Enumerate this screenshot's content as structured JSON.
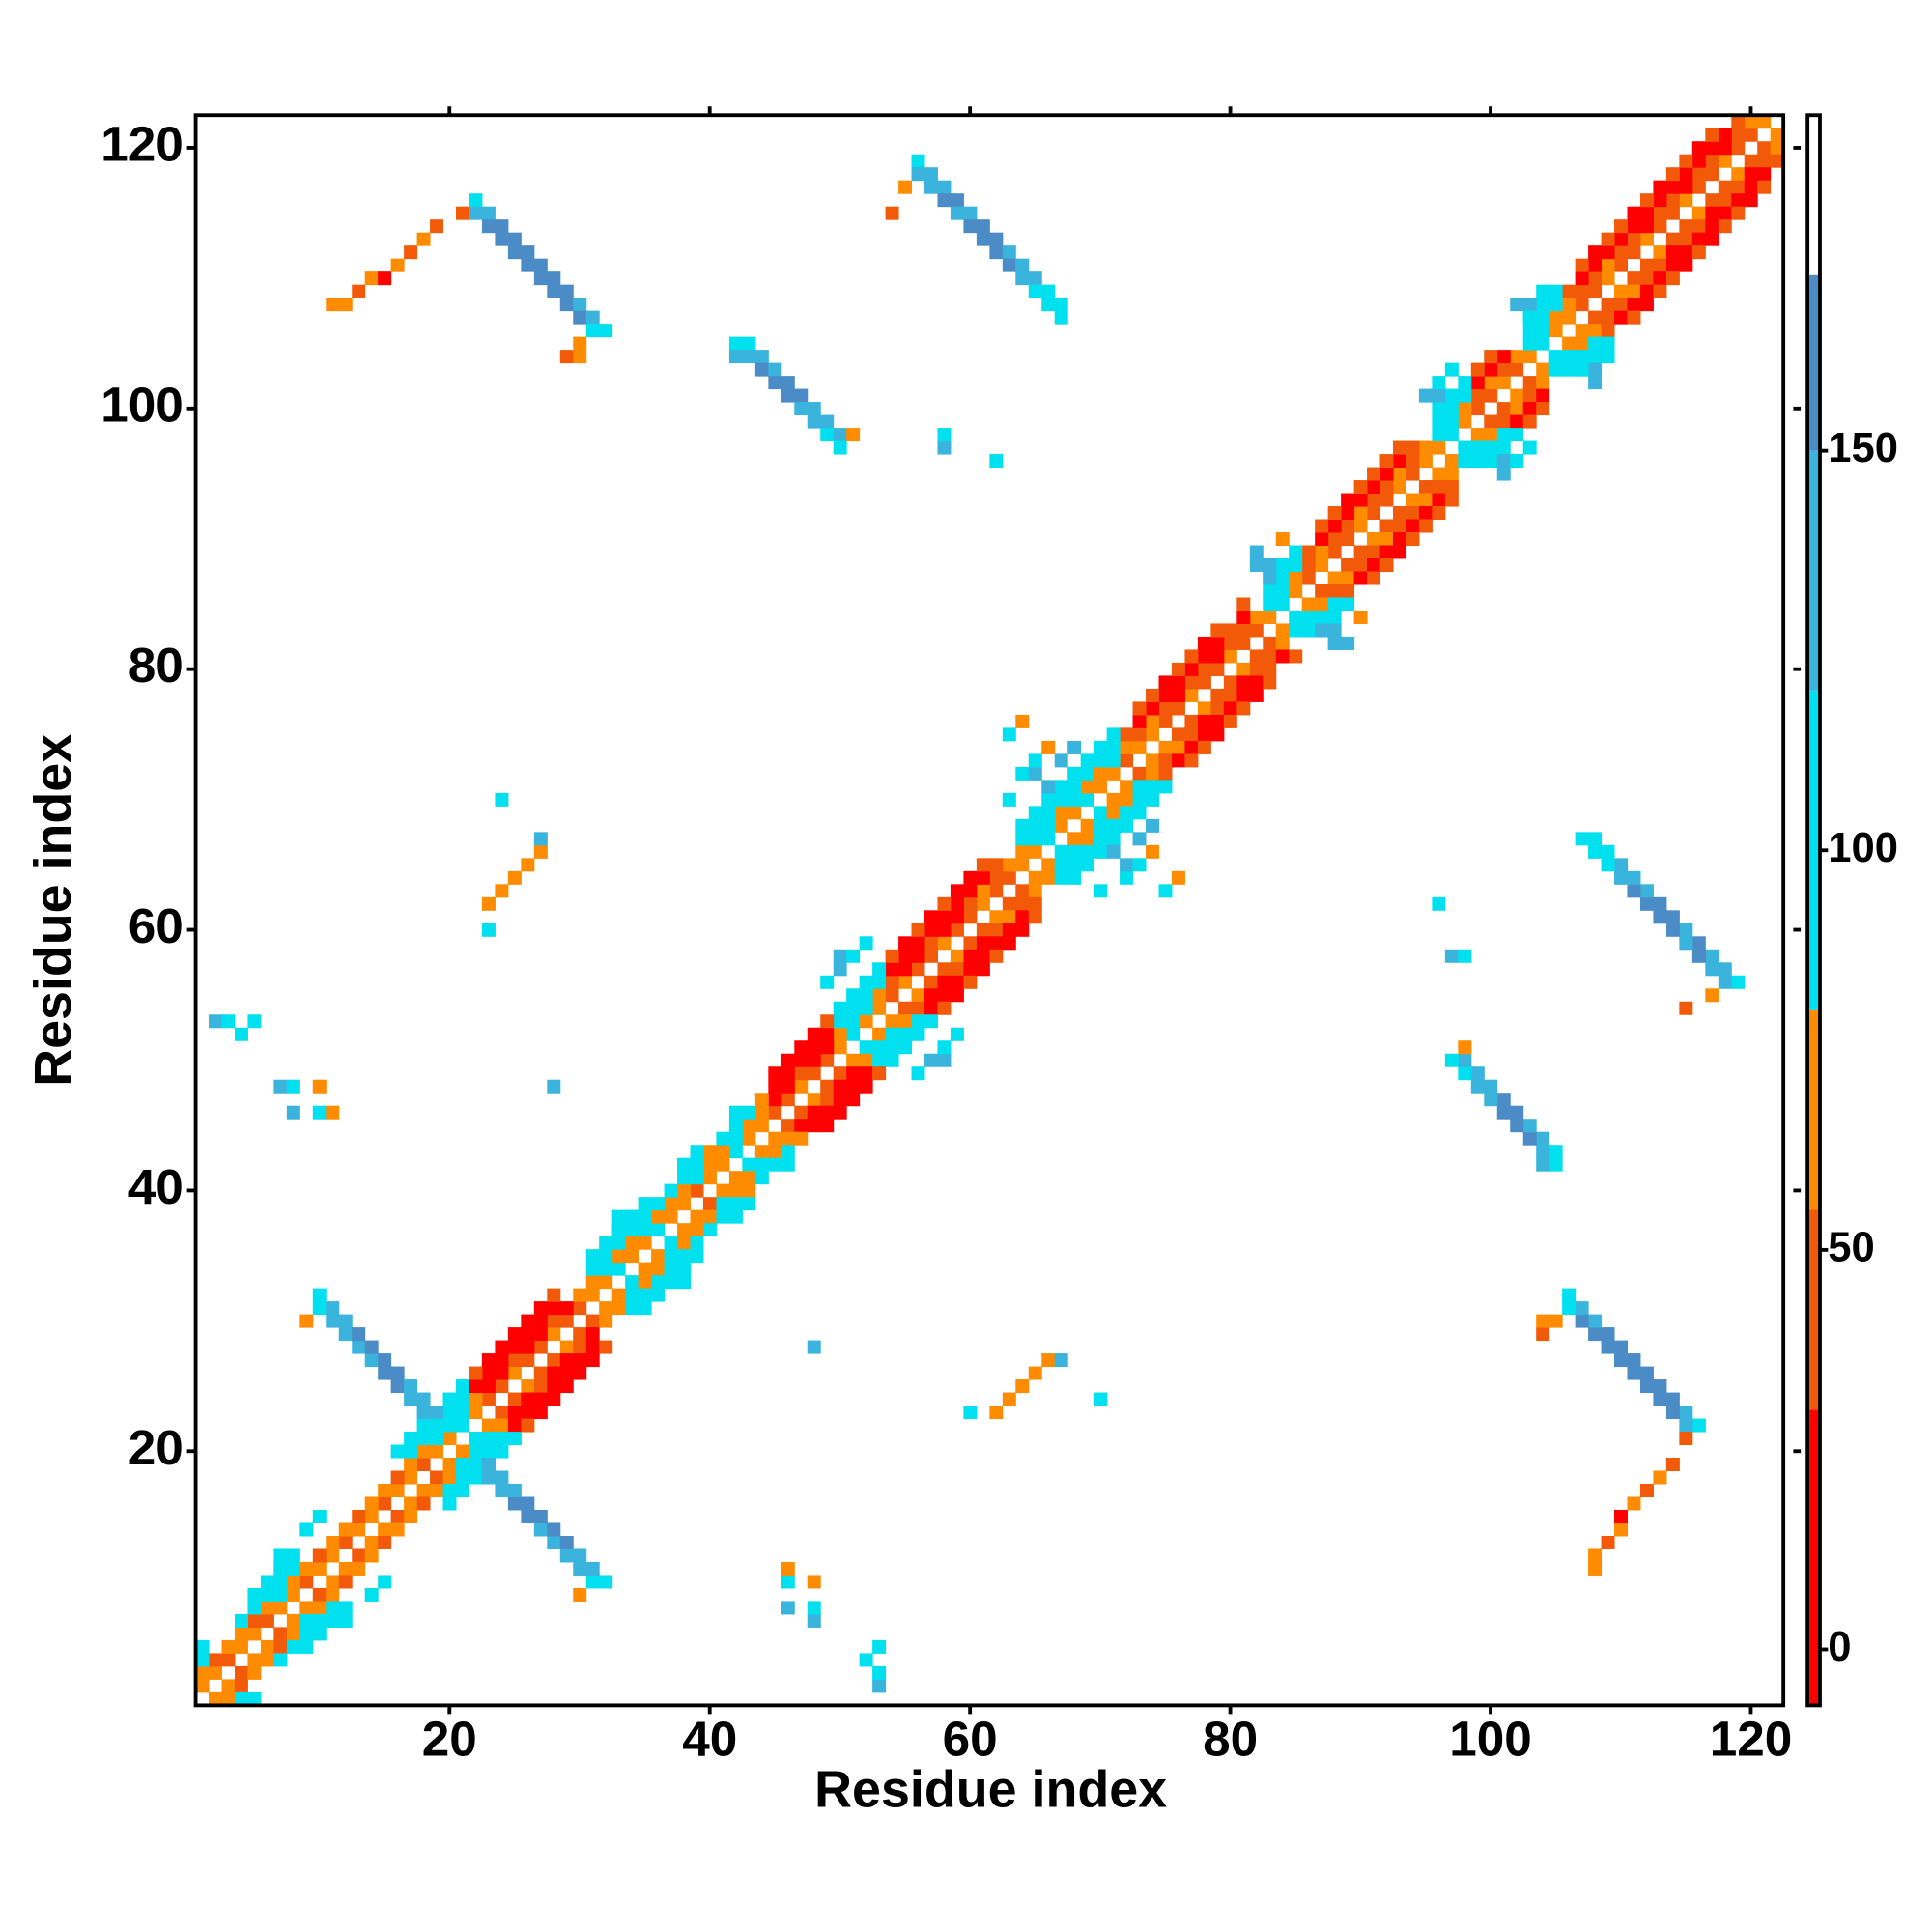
{
  "chart_data": {
    "type": "heatmap",
    "xlabel": "Residue index",
    "ylabel": "Residue index",
    "xlim": [
      0.5,
      122.5
    ],
    "ylim": [
      0.5,
      122.5
    ],
    "xticks": [
      20,
      40,
      60,
      80,
      100,
      120
    ],
    "yticks": [
      20,
      40,
      60,
      80,
      100,
      120
    ],
    "symmetric": true,
    "colorbar": {
      "ylim": [
        -7,
        192
      ],
      "yticks": [
        0,
        50,
        100,
        150
      ],
      "bounds": [
        -7,
        30,
        55,
        80,
        120,
        150,
        172,
        192
      ],
      "colors": [
        "#ff0000",
        "#f25a0a",
        "#ff8c00",
        "#00e0ee",
        "#3ab4dc",
        "#4c8cc6",
        "#ffffff"
      ]
    },
    "diagonal_bands": [
      {
        "offset": 1,
        "values": [
          60,
          60,
          40,
          60,
          60,
          40,
          60,
          60,
          40,
          60,
          60,
          40,
          60,
          60,
          40,
          60,
          60,
          40,
          60,
          60,
          90,
          60,
          40,
          40,
          60,
          40,
          40,
          60,
          40,
          40,
          60,
          60,
          90,
          60,
          60,
          90,
          60,
          60,
          40,
          60,
          60,
          90,
          60,
          60,
          40,
          40,
          60,
          40,
          40,
          60,
          90,
          60,
          60,
          40,
          60,
          40,
          40,
          60,
          40,
          40,
          60,
          40,
          40,
          60,
          60,
          90,
          60,
          60,
          90,
          60,
          60,
          40,
          60,
          60,
          40,
          40,
          60,
          40,
          40,
          60,
          40,
          40,
          60,
          90,
          60,
          40,
          60,
          40,
          40,
          60,
          40,
          40,
          60,
          40,
          60,
          60,
          90,
          60,
          40,
          40,
          60,
          40,
          60,
          90,
          60,
          60,
          40,
          40,
          60,
          40,
          40,
          60,
          40,
          40,
          60,
          40,
          40,
          60,
          40,
          40,
          60
        ]
      },
      {
        "offset": 2,
        "values": [
          60,
          40,
          60,
          60,
          40,
          60,
          90,
          60,
          60,
          40,
          60,
          60,
          40,
          60,
          60,
          40,
          60,
          60,
          90,
          90,
          90,
          60,
          10,
          10,
          35,
          10,
          10,
          35,
          10,
          60,
          60,
          90,
          60,
          60,
          90,
          60,
          60,
          60,
          90,
          60,
          60,
          90,
          60,
          60,
          10,
          10,
          35,
          10,
          10,
          60,
          90,
          90,
          60,
          35,
          10,
          10,
          35,
          10,
          10,
          35,
          60,
          35,
          60,
          60,
          90,
          90,
          60,
          90,
          60,
          60,
          90,
          60,
          35,
          60,
          35,
          10,
          35,
          35,
          10,
          35,
          35,
          60,
          90,
          90,
          60,
          35,
          60,
          35,
          35,
          60,
          35,
          35,
          60,
          35,
          60,
          90,
          90,
          60,
          35,
          60,
          35,
          60,
          90,
          90,
          60,
          60,
          35,
          35,
          60,
          35,
          35,
          10,
          35,
          35,
          10,
          35,
          35,
          10,
          35,
          60
        ]
      },
      {
        "offset": 3,
        "values": [
          90,
          null,
          null,
          90,
          90,
          90,
          90,
          90,
          null,
          null,
          null,
          null,
          null,
          null,
          null,
          null,
          90,
          90,
          90,
          90,
          90,
          10,
          10,
          10,
          10,
          10,
          10,
          10,
          null,
          null,
          90,
          90,
          90,
          90,
          90,
          90,
          90,
          90,
          90,
          60,
          90,
          90,
          90,
          60,
          10,
          10,
          10,
          10,
          10,
          90,
          90,
          90,
          90,
          10,
          10,
          10,
          10,
          10,
          10,
          10,
          10,
          35,
          null,
          90,
          90,
          90,
          90,
          90,
          90,
          90,
          90,
          35,
          10,
          10,
          10,
          10,
          10,
          10,
          10,
          35,
          10,
          null,
          90,
          90,
          90,
          35,
          10,
          10,
          10,
          10,
          10,
          10,
          10,
          35,
          null,
          90,
          90,
          90,
          10,
          10,
          10,
          null,
          90,
          90,
          90,
          35,
          10,
          10,
          10,
          10,
          10,
          10,
          10,
          10,
          10,
          10,
          10,
          10,
          35
        ]
      },
      {
        "offset": 4,
        "values": [
          90,
          null,
          null,
          null,
          90,
          90,
          90,
          null,
          null,
          null,
          null,
          null,
          null,
          null,
          null,
          90,
          90,
          90,
          90,
          90,
          90,
          35,
          10,
          10,
          10,
          10,
          10,
          35,
          null,
          null,
          90,
          90,
          90,
          90,
          null,
          null,
          null,
          90,
          90,
          null,
          null,
          90,
          null,
          null,
          10,
          10,
          10,
          10,
          35,
          90,
          90,
          90,
          90,
          35,
          10,
          35,
          10,
          35,
          10,
          10,
          35,
          null,
          null,
          90,
          90,
          90,
          90,
          90,
          90,
          90,
          90,
          null,
          35,
          35,
          10,
          35,
          35,
          10,
          35,
          null,
          35,
          null,
          90,
          90,
          90,
          null,
          35,
          35,
          10,
          35,
          35,
          35,
          35,
          null,
          null,
          90,
          90,
          90,
          35,
          35,
          null,
          null,
          90,
          90,
          90,
          null,
          35,
          10,
          35,
          35,
          10,
          35,
          10,
          35,
          35,
          10,
          35,
          null
        ]
      }
    ],
    "cells": [
      [
        10,
        31,
        90
      ],
      [
        10,
        32,
        90
      ],
      [
        11,
        30,
        130
      ],
      [
        11,
        31,
        130
      ],
      [
        12,
        29,
        130
      ],
      [
        12,
        30,
        130
      ],
      [
        13,
        28,
        130
      ],
      [
        13,
        29,
        165
      ],
      [
        14,
        27,
        130
      ],
      [
        14,
        28,
        165
      ],
      [
        15,
        26,
        165
      ],
      [
        15,
        27,
        165
      ],
      [
        16,
        25,
        165
      ],
      [
        16,
        26,
        165
      ],
      [
        17,
        24,
        130
      ],
      [
        17,
        25,
        130
      ],
      [
        18,
        23,
        130
      ],
      [
        18,
        24,
        130
      ],
      [
        19,
        22,
        90
      ],
      [
        19,
        23,
        130
      ],
      [
        9,
        30,
        60
      ],
      [
        22,
        116,
        90
      ],
      [
        22,
        115,
        130
      ],
      [
        23,
        115,
        130
      ],
      [
        23,
        114,
        165
      ],
      [
        24,
        114,
        165
      ],
      [
        24,
        113,
        165
      ],
      [
        25,
        113,
        165
      ],
      [
        25,
        112,
        165
      ],
      [
        26,
        112,
        165
      ],
      [
        26,
        111,
        165
      ],
      [
        27,
        111,
        165
      ],
      [
        27,
        110,
        165
      ],
      [
        28,
        110,
        165
      ],
      [
        28,
        109,
        165
      ],
      [
        29,
        109,
        165
      ],
      [
        29,
        108,
        165
      ],
      [
        30,
        108,
        130
      ],
      [
        30,
        107,
        165
      ],
      [
        31,
        107,
        130
      ],
      [
        31,
        106,
        90
      ],
      [
        32,
        106,
        90
      ],
      [
        11,
        108,
        60
      ],
      [
        12,
        108,
        60
      ],
      [
        13,
        109,
        40
      ],
      [
        14,
        110,
        60
      ],
      [
        15,
        110,
        10
      ],
      [
        16,
        111,
        60
      ],
      [
        17,
        112,
        40
      ],
      [
        18,
        113,
        60
      ],
      [
        19,
        114,
        40
      ],
      [
        21,
        115,
        40
      ],
      [
        29,
        104,
        40
      ],
      [
        30,
        104,
        60
      ],
      [
        30,
        105,
        60
      ],
      [
        42,
        105,
        90
      ],
      [
        42,
        104,
        130
      ],
      [
        43,
        105,
        90
      ],
      [
        43,
        104,
        130
      ],
      [
        44,
        104,
        130
      ],
      [
        44,
        103,
        165
      ],
      [
        45,
        103,
        130
      ],
      [
        45,
        102,
        165
      ],
      [
        46,
        102,
        165
      ],
      [
        46,
        101,
        165
      ],
      [
        47,
        101,
        165
      ],
      [
        47,
        100,
        130
      ],
      [
        48,
        100,
        130
      ],
      [
        48,
        99,
        130
      ],
      [
        49,
        99,
        130
      ],
      [
        49,
        98,
        90
      ],
      [
        50,
        98,
        130
      ],
      [
        50,
        97,
        90
      ],
      [
        51,
        98,
        60
      ],
      [
        56,
        119,
        90
      ],
      [
        56,
        118,
        130
      ],
      [
        57,
        118,
        130
      ],
      [
        57,
        117,
        130
      ],
      [
        58,
        117,
        130
      ],
      [
        58,
        116,
        165
      ],
      [
        59,
        116,
        165
      ],
      [
        59,
        115,
        130
      ],
      [
        60,
        115,
        130
      ],
      [
        60,
        114,
        165
      ],
      [
        61,
        114,
        165
      ],
      [
        61,
        113,
        165
      ],
      [
        62,
        113,
        165
      ],
      [
        62,
        112,
        165
      ],
      [
        63,
        112,
        130
      ],
      [
        63,
        111,
        165
      ],
      [
        64,
        111,
        130
      ],
      [
        64,
        110,
        130
      ],
      [
        65,
        110,
        130
      ],
      [
        65,
        109,
        90
      ],
      [
        66,
        109,
        90
      ],
      [
        66,
        108,
        90
      ],
      [
        67,
        108,
        90
      ],
      [
        67,
        107,
        90
      ],
      [
        54,
        115,
        40
      ],
      [
        55,
        117,
        60
      ],
      [
        23,
        60,
        90
      ],
      [
        23,
        62,
        60
      ],
      [
        24,
        63,
        60
      ],
      [
        25,
        64,
        60
      ],
      [
        26,
        65,
        60
      ],
      [
        27,
        66,
        60
      ],
      [
        27,
        67,
        130
      ],
      [
        24,
        70,
        90
      ],
      [
        2,
        53,
        130
      ],
      [
        3,
        53,
        90
      ],
      [
        4,
        52,
        90
      ],
      [
        5,
        53,
        90
      ],
      [
        7,
        48,
        130
      ],
      [
        8,
        46,
        130
      ],
      [
        8,
        48,
        90
      ],
      [
        10,
        46,
        90
      ],
      [
        10,
        48,
        60
      ],
      [
        11,
        46,
        60
      ],
      [
        28,
        48,
        130
      ],
      [
        58,
        97,
        130
      ],
      [
        58,
        98,
        90
      ],
      [
        62,
        96,
        90
      ],
      [
        7,
        12,
        90
      ],
      [
        8,
        12,
        90
      ],
      [
        7,
        11,
        90
      ],
      [
        9,
        14,
        90
      ],
      [
        10,
        15,
        90
      ],
      [
        33,
        38,
        90
      ],
      [
        34,
        38,
        90
      ],
      [
        35,
        39,
        90
      ],
      [
        33,
        37,
        90
      ],
      [
        64,
        72,
        90
      ],
      [
        65,
        72,
        130
      ],
      [
        65,
        73,
        90
      ],
      [
        66,
        71,
        130
      ],
      [
        67,
        73,
        130
      ],
      [
        66,
        74,
        60
      ],
      [
        63,
        75,
        90
      ],
      [
        64,
        76,
        60
      ],
      [
        68,
        74,
        130
      ],
      [
        63,
        70,
        90
      ],
      [
        82,
        88,
        130
      ],
      [
        83,
        88,
        130
      ],
      [
        83,
        87,
        130
      ],
      [
        82,
        89,
        130
      ],
      [
        84,
        90,
        60
      ],
      [
        95,
        101,
        130
      ],
      [
        96,
        101,
        130
      ],
      [
        96,
        102,
        90
      ],
      [
        97,
        103,
        90
      ],
      [
        102,
        108,
        130
      ],
      [
        103,
        108,
        130
      ],
      [
        103,
        107,
        90
      ],
      [
        104,
        109,
        90
      ],
      [
        50,
        57,
        130
      ],
      [
        50,
        58,
        130
      ],
      [
        49,
        56,
        90
      ],
      [
        51,
        58,
        90
      ],
      [
        52,
        59,
        90
      ]
    ]
  }
}
